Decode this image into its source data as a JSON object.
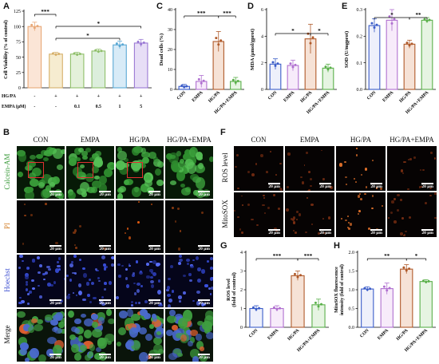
{
  "panels": {
    "A": "A",
    "B": "B",
    "C": "C",
    "D": "D",
    "E": "E",
    "F": "F",
    "G": "G",
    "H": "H"
  },
  "scale_bar": "20 μm",
  "chart_A": {
    "type": "bar",
    "ylabel": "Cell Viability (% of control)",
    "ylim": [
      0,
      125
    ],
    "yticks": [
      "0",
      "25",
      "50",
      "75",
      "100",
      "125"
    ],
    "values": [
      100,
      55,
      55,
      60,
      70,
      73
    ],
    "errors": [
      7,
      3,
      3,
      3,
      6,
      6
    ],
    "colors": [
      "#e8a877",
      "#d6b06a",
      "#8fbf6a",
      "#8fbf6a",
      "#5aa8d4",
      "#9a79d4"
    ],
    "fill": [
      "#fbe5d6",
      "#f6ecd0",
      "#e4f1da",
      "#dceedc",
      "#d8ebf7",
      "#e7def6"
    ],
    "row_labels": [
      "HG/PA",
      "EMPA (μM)"
    ],
    "hgpa_marks": [
      "-",
      "+",
      "+",
      "+",
      "+",
      "+"
    ],
    "empa_marks": [
      "-",
      "-",
      "0.1",
      "0.5",
      "1",
      "5"
    ],
    "sig": [
      "***",
      "*",
      "*"
    ]
  },
  "chart_C": {
    "type": "bar",
    "ylabel": "Dead cells (%)",
    "ylim": [
      0,
      40
    ],
    "yticks": [
      "0",
      "10",
      "20",
      "30",
      "40"
    ],
    "categories": [
      "CON",
      "EMPA",
      "HG/PA",
      "HG/PA+EMPA"
    ],
    "values": [
      1.5,
      4,
      24,
      4
    ],
    "errors": [
      1,
      3,
      5,
      2
    ],
    "colors": [
      "#3a5cc8",
      "#b070d0",
      "#b05a2a",
      "#5ab04a"
    ],
    "fill": [
      "#eef0fb",
      "#f7ebfa",
      "#f6e2d6",
      "#e6f4e2"
    ],
    "sig": [
      "***",
      "***"
    ]
  },
  "chart_D": {
    "type": "bar",
    "ylabel": "MDA (μmol/gprot)",
    "ylim": [
      0,
      6
    ],
    "yticks": [
      "0",
      "2",
      "4",
      "6"
    ],
    "categories": [
      "CON",
      "EMPA",
      "HG/PA",
      "HG/PA+EMPA"
    ],
    "values": [
      1.9,
      1.8,
      3.8,
      1.6
    ],
    "errors": [
      0.4,
      0.4,
      1.1,
      0.3
    ],
    "colors": [
      "#3a5cc8",
      "#b070d0",
      "#b05a2a",
      "#5ab04a"
    ],
    "fill": [
      "#eef0fb",
      "#f7ebfa",
      "#f6e2d6",
      "#e6f4e2"
    ],
    "sig": [
      "*",
      "*"
    ]
  },
  "chart_E": {
    "type": "bar",
    "ylabel": "SOD (U/mgprot)",
    "ylim": [
      0,
      0.3
    ],
    "yticks": [
      "0.0",
      "0.1",
      "0.2",
      "0.3"
    ],
    "categories": [
      "CON",
      "EMPA",
      "HG/PA",
      "HG/PA+EMPA"
    ],
    "values": [
      0.24,
      0.26,
      0.17,
      0.26
    ],
    "errors": [
      0.025,
      0.04,
      0.015,
      0.01
    ],
    "colors": [
      "#3a5cc8",
      "#b070d0",
      "#b05a2a",
      "#5ab04a"
    ],
    "fill": [
      "#eef0fb",
      "#f7ebfa",
      "#f6e2d6",
      "#e6f4e2"
    ],
    "sig": [
      "*",
      "**"
    ]
  },
  "chart_G": {
    "type": "bar",
    "ylabel": "ROS level (fold of control)",
    "ylim": [
      0,
      4
    ],
    "yticks": [
      "0",
      "1",
      "2",
      "3",
      "4"
    ],
    "categories": [
      "CON",
      "EMPA",
      "HG/PA",
      "HG/PA+EMPA"
    ],
    "values": [
      1.0,
      1.0,
      2.75,
      1.2
    ],
    "errors": [
      0.15,
      0.15,
      0.25,
      0.3
    ],
    "colors": [
      "#3a5cc8",
      "#b070d0",
      "#b05a2a",
      "#5ab04a"
    ],
    "fill": [
      "#eef0fb",
      "#f7ebfa",
      "#f6e2d6",
      "#e6f4e2"
    ],
    "sig": [
      "***",
      "***"
    ]
  },
  "chart_H": {
    "type": "bar",
    "ylabel": "MitoSOX fluorescence intensity (fold of control)",
    "ylim": [
      0,
      2
    ],
    "yticks": [
      "0.0",
      "0.5",
      "1.0",
      "1.5",
      "2.0"
    ],
    "categories": [
      "CON",
      "EMPA",
      "HG/PA",
      "HG/PA+EMPA"
    ],
    "values": [
      1.02,
      1.03,
      1.55,
      1.22
    ],
    "errors": [
      0.06,
      0.15,
      0.12,
      0.05
    ],
    "colors": [
      "#3a5cc8",
      "#b070d0",
      "#b05a2a",
      "#5ab04a"
    ],
    "fill": [
      "#eef0fb",
      "#f7ebfa",
      "#f6e2d6",
      "#e6f4e2"
    ],
    "sig": [
      "**",
      "*"
    ]
  },
  "micrograph_B": {
    "columns": [
      "CON",
      "EMPA",
      "HG/PA",
      "HG/PA+EMPA"
    ],
    "rows": [
      "Calcein-AM",
      "PI",
      "Hoechst",
      "Merge"
    ]
  },
  "micrograph_F": {
    "columns": [
      "CON",
      "EMPA",
      "HG/PA",
      "HG/PA+EMPA"
    ],
    "rows": [
      "ROS level",
      "MitoSOX"
    ]
  }
}
